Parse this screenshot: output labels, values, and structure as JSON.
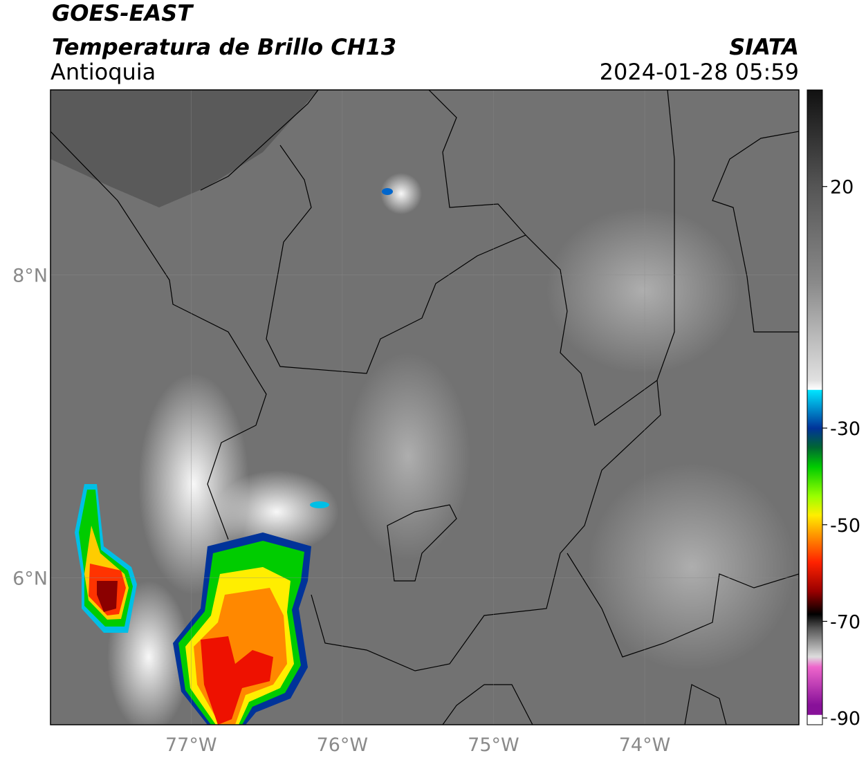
{
  "header": {
    "title": "GOES-EAST",
    "subtitle": "Temperatura de Brillo CH13",
    "region": "Antioquia",
    "source": "SIATA",
    "datetime": "2024-01-28 05:59"
  },
  "map": {
    "xlim": [
      -77.93,
      -72.98
    ],
    "ylim": [
      5.03,
      9.22
    ],
    "xticks": [
      {
        "value": -77,
        "label": "77°W"
      },
      {
        "value": -76,
        "label": "76°W"
      },
      {
        "value": -75,
        "label": "75°W"
      },
      {
        "value": -74,
        "label": "74°W"
      }
    ],
    "yticks": [
      {
        "value": 6,
        "label": "6°N"
      },
      {
        "value": 8,
        "label": "8°N"
      }
    ]
  },
  "colorbar": {
    "lim": [
      -91.4,
      40
    ],
    "ticks": [
      20,
      -30,
      -50,
      -70,
      -90
    ]
  }
}
